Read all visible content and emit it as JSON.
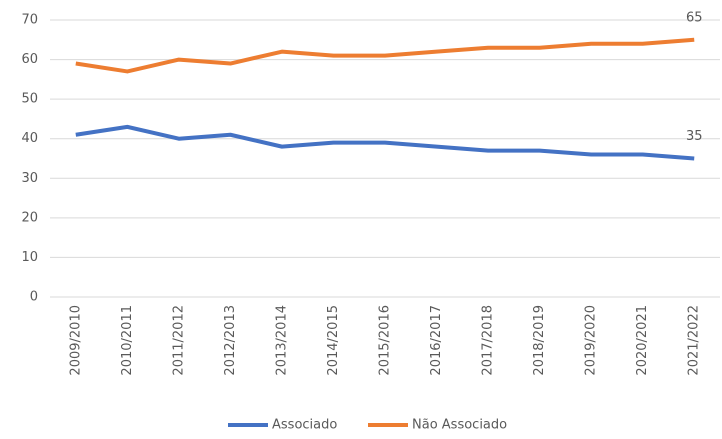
{
  "chart_data": {
    "type": "line",
    "categories": [
      "2009/2010",
      "2010/2011",
      "2011/2012",
      "2012/2013",
      "2013/2014",
      "2014/2015",
      "2015/2016",
      "2016/2017",
      "2017/2018",
      "2018/2019",
      "2019/2020",
      "2020/2021",
      "2021/2022"
    ],
    "series": [
      {
        "name": "Associado",
        "color": "#4472c4",
        "values": [
          41,
          43,
          40,
          41,
          38,
          39,
          39,
          38,
          37,
          37,
          36,
          36,
          35
        ]
      },
      {
        "name": "Não Associado",
        "color": "#ed7d31",
        "values": [
          59,
          57,
          60,
          59,
          62,
          61,
          61,
          62,
          63,
          63,
          64,
          64,
          65
        ]
      }
    ],
    "ylim": [
      0,
      70
    ],
    "yticks": [
      0,
      10,
      20,
      30,
      40,
      50,
      60,
      70
    ],
    "grid": true,
    "legend": "bottom"
  }
}
